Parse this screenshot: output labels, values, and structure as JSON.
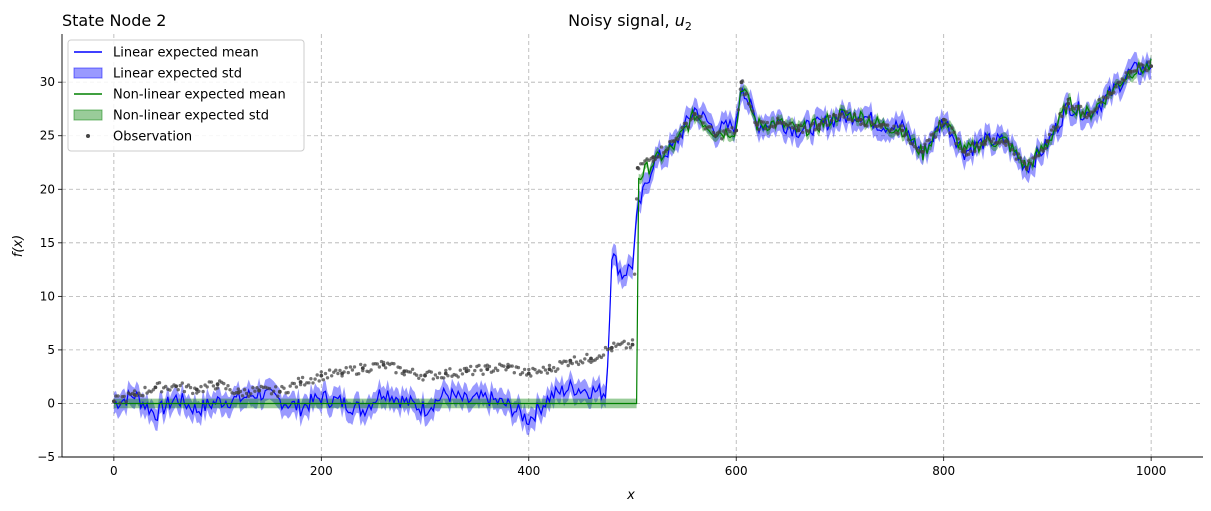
{
  "chart_data": {
    "type": "line",
    "title": "Noisy signal, ",
    "title_math": "u",
    "title_sub": "2",
    "left_title": "State Node 2",
    "xlabel": "x",
    "ylabel": "f(x)",
    "xlim": [
      -50,
      1050
    ],
    "ylim": [
      -5,
      34.5
    ],
    "xticks": [
      0,
      200,
      400,
      600,
      800,
      1000
    ],
    "yticks": [
      -5,
      0,
      5,
      10,
      15,
      20,
      25,
      30
    ],
    "grid": true,
    "legend_position": "top-left",
    "legend": [
      {
        "label": "Linear expected mean",
        "kind": "line",
        "color": "#0000ff"
      },
      {
        "label": "Linear expected std",
        "kind": "patch",
        "color": "#0000ff"
      },
      {
        "label": "Non-linear expected mean",
        "kind": "line",
        "color": "#008000"
      },
      {
        "label": "Non-linear expected std",
        "kind": "patch",
        "color": "#008000"
      },
      {
        "label": "Observation",
        "kind": "dot",
        "color": "#444444"
      }
    ],
    "colors": {
      "linear": "#0000ff",
      "nonlinear": "#008000",
      "observation": "#444444"
    },
    "series": [
      {
        "name": "Observation",
        "kind": "scatter",
        "x": [
          0,
          20,
          40,
          60,
          80,
          100,
          120,
          140,
          160,
          180,
          200,
          220,
          240,
          260,
          280,
          300,
          320,
          340,
          360,
          380,
          400,
          420,
          440,
          460,
          480,
          500,
          505,
          520,
          540,
          560,
          580,
          600,
          605,
          620,
          640,
          660,
          680,
          700,
          720,
          740,
          760,
          780,
          800,
          820,
          840,
          860,
          880,
          900,
          920,
          940,
          960,
          980,
          1000
        ],
        "y": [
          0.2,
          0.8,
          1.5,
          1.6,
          1.3,
          1.8,
          1.0,
          1.2,
          1.1,
          2.0,
          2.6,
          2.8,
          3.3,
          3.6,
          3.0,
          2.6,
          2.8,
          3.0,
          3.2,
          3.4,
          2.8,
          3.2,
          4.0,
          4.2,
          5.2,
          5.5,
          22.0,
          23.0,
          24.5,
          27.0,
          25.0,
          25.5,
          30.0,
          26.0,
          26.2,
          25.5,
          26.0,
          27.0,
          26.5,
          26.0,
          25.5,
          23.5,
          26.5,
          23.5,
          24.5,
          24.5,
          22.0,
          24.5,
          28.0,
          27.0,
          29.0,
          31.0,
          31.5
        ]
      },
      {
        "name": "Linear expected mean",
        "kind": "line",
        "x": [
          0,
          20,
          40,
          60,
          80,
          100,
          120,
          140,
          160,
          180,
          200,
          220,
          240,
          260,
          280,
          300,
          320,
          340,
          360,
          380,
          400,
          420,
          440,
          460,
          475,
          480,
          490,
          500,
          505,
          520,
          540,
          560,
          580,
          600,
          605,
          620,
          640,
          660,
          680,
          700,
          720,
          740,
          760,
          780,
          800,
          820,
          840,
          860,
          880,
          900,
          920,
          940,
          960,
          980,
          1000
        ],
        "y": [
          0.0,
          0.8,
          -1.0,
          0.5,
          -0.6,
          0.2,
          0.4,
          1.0,
          0.3,
          -0.4,
          0.6,
          0.1,
          -0.6,
          1.2,
          0.2,
          -0.5,
          0.9,
          0.2,
          0.5,
          -0.2,
          -1.5,
          0.6,
          1.5,
          1.2,
          1.0,
          14.0,
          12.0,
          13.0,
          18.0,
          22.5,
          24.0,
          27.5,
          25.5,
          26.0,
          30.0,
          26.0,
          26.3,
          25.5,
          26.0,
          26.7,
          27.0,
          26.0,
          25.8,
          23.3,
          26.5,
          23.5,
          24.5,
          24.5,
          22.0,
          24.2,
          27.8,
          27.0,
          28.8,
          31.0,
          31.5
        ]
      },
      {
        "name": "Linear expected std",
        "kind": "band",
        "std": 1.0
      },
      {
        "name": "Non-linear expected mean",
        "kind": "line",
        "x": [
          0,
          100,
          200,
          300,
          400,
          505,
          506,
          510,
          520,
          540,
          560,
          580,
          600,
          605,
          620,
          640,
          660,
          680,
          700,
          720,
          740,
          760,
          780,
          800,
          820,
          840,
          860,
          880,
          900,
          920,
          940,
          960,
          980,
          1000
        ],
        "y": [
          0,
          0,
          0,
          0,
          0,
          0,
          21.0,
          21.5,
          22.5,
          24.0,
          27.0,
          25.3,
          25.5,
          30.0,
          26.0,
          26.2,
          25.5,
          26.0,
          27.0,
          26.8,
          26.0,
          25.6,
          23.3,
          26.5,
          23.5,
          24.5,
          24.5,
          22.0,
          24.3,
          28.0,
          27.0,
          29.0,
          31.0,
          31.5
        ]
      },
      {
        "name": "Non-linear expected std",
        "kind": "band",
        "std": 0.45
      }
    ]
  }
}
